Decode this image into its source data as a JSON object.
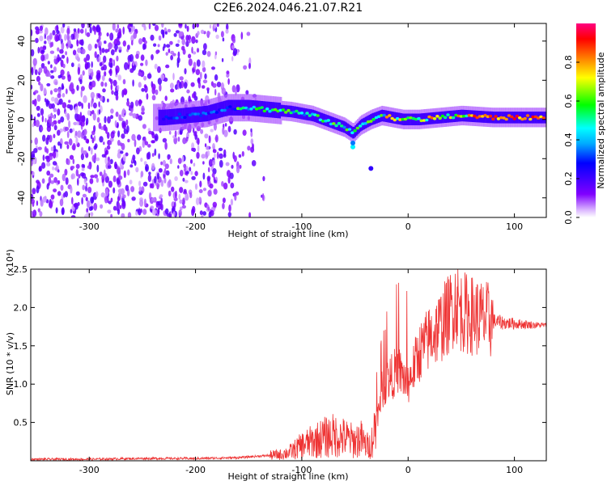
{
  "title": "C2E6.2024.046.21.07.R21",
  "chart_data": [
    {
      "type": "heatmap",
      "xlabel": "Height of straight line (km)",
      "ylabel": "Frequency (Hz)",
      "xlim": [
        -355,
        130
      ],
      "ylim": [
        -50,
        49
      ],
      "xticks": [
        -300,
        -200,
        -100,
        0,
        100
      ],
      "yticks": [
        -40,
        -20,
        0,
        20,
        40
      ],
      "colorbar": {
        "label": "Normalized spectral amplitude",
        "range": [
          0.0,
          1.0
        ],
        "ticks": [
          0.0,
          0.2,
          0.4,
          0.6,
          0.8
        ],
        "colors": [
          "#ffffff",
          "#d9b3ff",
          "#8000ff",
          "#4000ff",
          "#0000ff",
          "#00ffff",
          "#00ff00",
          "#ffff00",
          "#ff8000",
          "#ff0000",
          "#ff0080"
        ]
      },
      "ridge": {
        "name": "",
        "x": [
          -230,
          -210,
          -190,
          -170,
          -150,
          -130,
          -110,
          -90,
          -75,
          -60,
          -52,
          -45,
          -35,
          -25,
          -15,
          -5,
          10,
          30,
          50,
          80,
          100,
          130
        ],
        "y": [
          1,
          2,
          3,
          6,
          6,
          5,
          4,
          2,
          -1,
          -4,
          -7,
          -3,
          0,
          2,
          1,
          0,
          0,
          1,
          2,
          1,
          1,
          1
        ]
      }
    },
    {
      "type": "line",
      "xlabel": "Height of straight line (km)",
      "ylabel": "SNR (10 * v/v)",
      "y_multiplier": "(x10⁴)",
      "xlim": [
        -355,
        130
      ],
      "ylim": [
        0,
        2.5
      ],
      "xticks": [
        -300,
        -200,
        -100,
        0,
        100
      ],
      "yticks": [
        0.5,
        1.0,
        1.5,
        2.0,
        2.5
      ],
      "line_color": "#ee3333",
      "series": [
        {
          "name": "",
          "x": [
            -355,
            -300,
            -250,
            -200,
            -160,
            -140,
            -120,
            -110,
            -100,
            -90,
            -80,
            -70,
            -60,
            -50,
            -45,
            -40,
            -35,
            -30,
            -25,
            -20,
            -15,
            -10,
            -5,
            0,
            10,
            20,
            30,
            40,
            45,
            50,
            60,
            70,
            80,
            90,
            100,
            110,
            120,
            130
          ],
          "y": [
            0.02,
            0.02,
            0.03,
            0.03,
            0.04,
            0.06,
            0.08,
            0.12,
            0.2,
            0.25,
            0.3,
            0.33,
            0.3,
            0.25,
            0.3,
            0.2,
            0.2,
            0.5,
            0.9,
            1.05,
            1.1,
            1.2,
            1.1,
            1.0,
            1.4,
            1.6,
            1.75,
            1.95,
            2.1,
            1.95,
            1.9,
            1.85,
            1.82,
            1.8,
            1.79,
            1.78,
            1.77,
            1.77
          ]
        }
      ]
    }
  ]
}
